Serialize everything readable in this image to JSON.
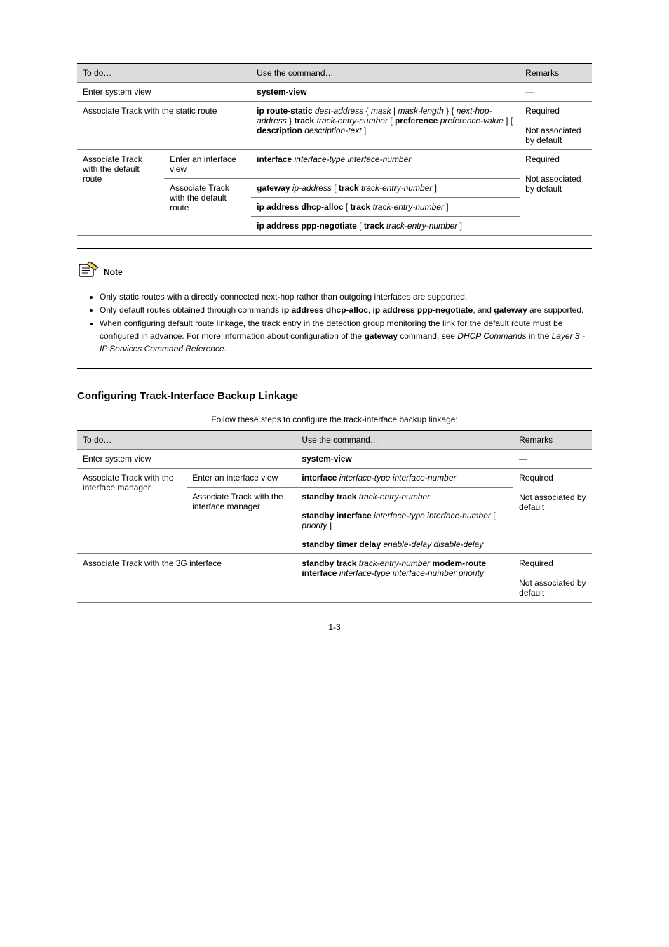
{
  "table1": {
    "header": [
      "To do…",
      "Use the command…",
      "Remarks"
    ],
    "rows": [
      {
        "cells": [
          "Enter system view",
          {
            "bold": "system-view"
          },
          "—"
        ],
        "colspans": [
          2,
          1,
          1
        ]
      },
      {
        "cells": [
          "Associate Track with the static route",
          {
            "parts": [
              {
                "bold": "ip route-static"
              },
              {
                "text": " "
              },
              {
                "ital": "dest-address"
              },
              {
                "text": " { "
              },
              {
                "ital": "mask"
              },
              {
                "text": " | "
              },
              {
                "ital": "mask-length"
              },
              {
                "text": " } { "
              },
              {
                "ital": "next-hop-address"
              },
              {
                "text": " } "
              },
              {
                "bold": "track"
              },
              {
                "text": " "
              },
              {
                "ital": "track-entry-number"
              },
              {
                "text": " [ "
              },
              {
                "bold": "preference"
              },
              {
                "text": " "
              },
              {
                "ital": "preference-value"
              },
              {
                "text": " ] [ "
              },
              {
                "bold": "description"
              },
              {
                "text": " "
              },
              {
                "ital": "description-text"
              },
              {
                "text": " ]"
              }
            ]
          },
          "Required\n\nNot associated by default"
        ],
        "colspans": [
          2,
          1,
          1
        ]
      },
      {
        "cells": [
          "Associate Track with the default route",
          "Enter an interface view",
          {
            "parts": [
              {
                "bold": "interface"
              },
              {
                "text": " "
              },
              {
                "ital": "interface-type interface-number"
              }
            ]
          },
          "Required\n\nNot associated by default"
        ],
        "rowspans": [
          4,
          1,
          1,
          4
        ]
      },
      {
        "cells": [
          "Associate Track with the default route",
          {
            "parts": [
              {
                "bold": "gateway"
              },
              {
                "text": " "
              },
              {
                "ital": "ip-address"
              },
              {
                "text": " [ "
              },
              {
                "bold": "track"
              },
              {
                "text": " "
              },
              {
                "ital": "track-entry-number"
              },
              {
                "text": " ]"
              }
            ]
          }
        ],
        "rowspans": [
          3,
          1
        ]
      },
      {
        "cells": [
          {
            "parts": [
              {
                "bold": "ip address dhcp-alloc"
              },
              {
                "text": " [ "
              },
              {
                "bold": "track"
              },
              {
                "text": " "
              },
              {
                "ital": "track-entry-number"
              },
              {
                "text": " ]"
              }
            ]
          }
        ]
      },
      {
        "cells": [
          {
            "parts": [
              {
                "bold": "ip address ppp-negotiate"
              },
              {
                "text": " [ "
              },
              {
                "bold": "track"
              },
              {
                "text": " "
              },
              {
                "ital": "track-entry-number"
              },
              {
                "text": " ]"
              }
            ]
          }
        ]
      }
    ]
  },
  "note": {
    "label": "Note",
    "items": [
      "Only static routes with a directly connected next-hop rather than outgoing interfaces are supported.",
      {
        "parts": [
          {
            "text": "Only default routes obtained through commands "
          },
          {
            "bold": "ip address dhcp-alloc"
          },
          {
            "text": ", "
          },
          {
            "bold": "ip address ppp-negotiate"
          },
          {
            "text": ", and "
          },
          {
            "bold": "gateway"
          },
          {
            "text": " are supported."
          }
        ]
      },
      {
        "parts": [
          {
            "text": "When configuring default route linkage, the track entry in the detection group monitoring the link for the default route must be configured in advance. For more information about configuration of the "
          },
          {
            "bold": "gateway"
          },
          {
            "text": " command, see "
          },
          {
            "ital": "DHCP Commands"
          },
          {
            "text": " in the "
          },
          {
            "ital": "Layer 3 - IP Services Command Reference"
          },
          {
            "text": "."
          }
        ]
      }
    ]
  },
  "section": {
    "heading": "Configuring Track-Interface Backup Linkage",
    "caption": "Follow these steps to configure the track-interface backup linkage:"
  },
  "table2": {
    "header": [
      "To do…",
      "Use the command…",
      "Remarks"
    ],
    "rows": [
      {
        "cells": [
          "Enter system view",
          {
            "bold": "system-view"
          },
          "—"
        ],
        "colspans": [
          2,
          1,
          1
        ]
      },
      {
        "cells": [
          "Associate Track with the interface manager",
          "Enter an interface view",
          {
            "parts": [
              {
                "bold": "interface"
              },
              {
                "text": " "
              },
              {
                "ital": "interface-type interface-number"
              }
            ]
          },
          "Required\n\nNot associated by default"
        ],
        "rowspans": [
          4,
          1,
          1,
          4
        ]
      },
      {
        "cells": [
          "Associate Track with the interface manager",
          {
            "parts": [
              {
                "bold": "standby track"
              },
              {
                "text": " "
              },
              {
                "ital": "track-entry-number"
              }
            ]
          }
        ],
        "rowspans": [
          3,
          1
        ]
      },
      {
        "cells": [
          {
            "parts": [
              {
                "bold": "standby interface"
              },
              {
                "text": " "
              },
              {
                "ital": "interface-type interface-number"
              },
              {
                "text": " [ "
              },
              {
                "ital": "priority"
              },
              {
                "text": " ]"
              }
            ]
          }
        ]
      },
      {
        "cells": [
          {
            "parts": [
              {
                "bold": "standby timer delay"
              },
              {
                "text": " "
              },
              {
                "ital": "enable-delay disable-delay"
              }
            ]
          }
        ]
      },
      {
        "cells": [
          "Associate Track with the 3G interface",
          {
            "parts": [
              {
                "bold": "standby track"
              },
              {
                "text": " "
              },
              {
                "ital": "track-entry-number"
              },
              {
                "text": " "
              },
              {
                "bold": "modem-route interface"
              },
              {
                "text": " "
              },
              {
                "ital": "interface-type interface-number"
              },
              {
                "text": " "
              },
              {
                "ital": "priority"
              }
            ]
          },
          "Required\n\nNot associated by default"
        ],
        "colspans": [
          2,
          1,
          1
        ]
      }
    ]
  },
  "pageNumber": "1-3",
  "colors": {
    "headerBg": "#dcdcdc",
    "border": "#777777",
    "text": "#000000",
    "bg": "#ffffff"
  }
}
